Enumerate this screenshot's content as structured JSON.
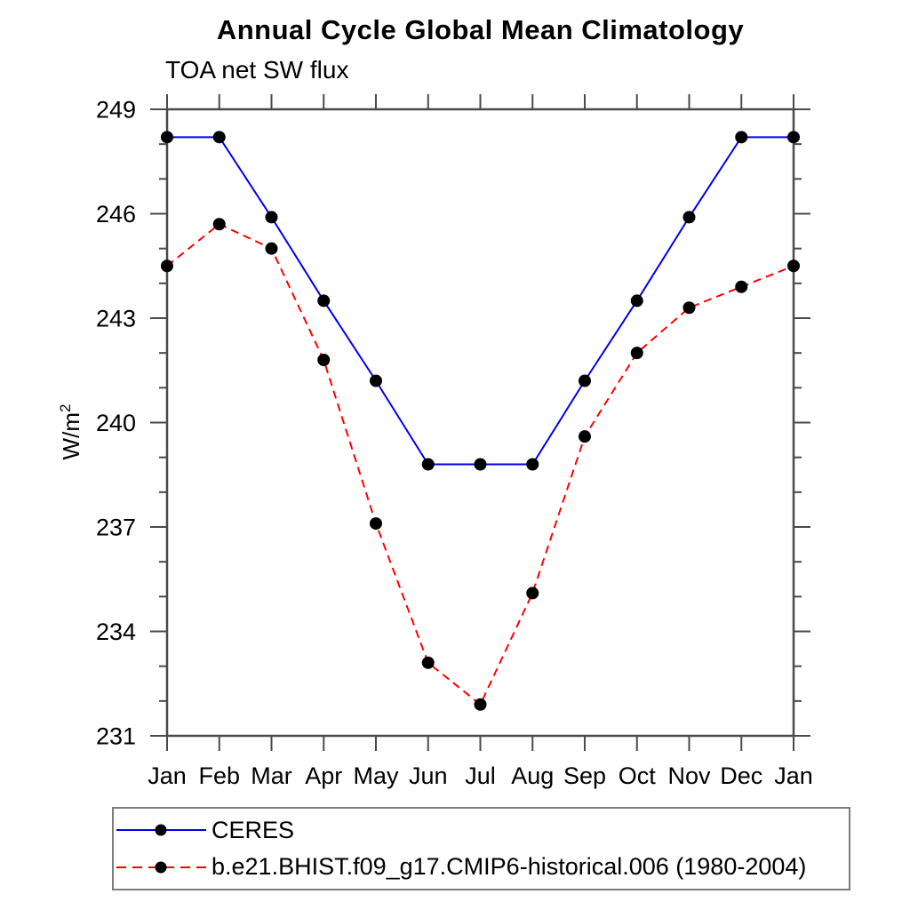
{
  "header": {
    "title": "Annual Cycle Global Mean Climatology",
    "subtitle": "TOA net SW flux"
  },
  "y_axis": {
    "label_main": "W/m",
    "label_sup": "2"
  },
  "chart_data": {
    "type": "line",
    "title": "Annual Cycle Global Mean Climatology",
    "subtitle": "TOA net SW flux",
    "xlabel": "",
    "ylabel": "W/m²",
    "categories": [
      "Jan",
      "Feb",
      "Mar",
      "Apr",
      "May",
      "Jun",
      "Jul",
      "Aug",
      "Sep",
      "Oct",
      "Nov",
      "Dec",
      "Jan"
    ],
    "series": [
      {
        "name": "CERES",
        "color": "#0000ee",
        "line_style": "solid",
        "marker": "black-dot",
        "values": [
          248.2,
          248.2,
          245.9,
          243.5,
          241.2,
          238.8,
          238.8,
          238.8,
          241.2,
          243.5,
          245.9,
          248.2,
          248.2
        ]
      },
      {
        "name": "b.e21.BHIST.f09_g17.CMIP6-historical.006 (1980-2004)",
        "color": "#ff0000",
        "line_style": "dashed",
        "marker": "black-dot",
        "values": [
          244.5,
          245.7,
          245.0,
          241.8,
          237.1,
          233.1,
          231.9,
          235.1,
          239.6,
          242.0,
          243.3,
          243.9,
          244.5
        ]
      }
    ],
    "ylim": [
      231,
      249
    ],
    "y_major_ticks": [
      231,
      234,
      237,
      240,
      243,
      246,
      249
    ],
    "y_minor_step": 1,
    "grid": false,
    "legend_position": "bottom",
    "axis_color": "#4a4a4a",
    "marker_color": "#000000"
  },
  "legend": {
    "items": [
      {
        "label": "CERES"
      },
      {
        "label": "b.e21.BHIST.f09_g17.CMIP6-historical.006 (1980-2004)"
      }
    ]
  }
}
